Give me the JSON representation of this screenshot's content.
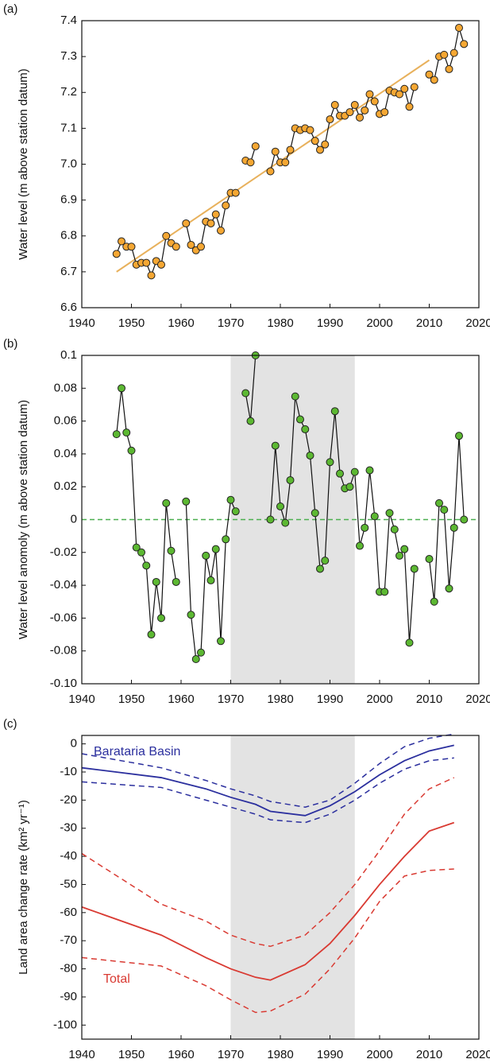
{
  "chart_data": [
    {
      "type": "line",
      "label": "(a)",
      "y_label": "Water level (m above station datum)",
      "xlim": [
        1940,
        2020
      ],
      "xticks": [
        1940,
        1950,
        1960,
        1970,
        1980,
        1990,
        2000,
        2010,
        2020
      ],
      "ylim": [
        6.6,
        7.4
      ],
      "yticks": [
        6.6,
        6.7,
        6.8,
        6.9,
        {
          "value": 7,
          "label": "7.0"
        },
        7.1,
        7.2,
        7.3,
        7.4
      ],
      "x": [
        1947,
        1948,
        1949,
        1950,
        1951,
        1952,
        1953,
        1954,
        1955,
        1956,
        1957,
        1958,
        1959,
        1960,
        1961,
        1962,
        1963,
        1964,
        1965,
        1966,
        1967,
        1968,
        1969,
        1970,
        1971,
        1972,
        1973,
        1974,
        1975,
        1976,
        1977,
        1978,
        1979,
        1980,
        1981,
        1982,
        1983,
        1984,
        1985,
        1986,
        1987,
        1988,
        1989,
        1990,
        1991,
        1992,
        1993,
        1994,
        1995,
        1996,
        1997,
        1998,
        1999,
        2000,
        2001,
        2002,
        2003,
        2004,
        2005,
        2006,
        2007,
        2008,
        2009,
        2010,
        2011,
        2012,
        2013,
        2014,
        2015,
        2016,
        2017
      ],
      "values": [
        6.75,
        6.785,
        6.77,
        6.77,
        6.72,
        6.725,
        6.725,
        6.69,
        6.73,
        6.72,
        6.8,
        6.78,
        6.77,
        null,
        6.835,
        6.775,
        6.76,
        6.77,
        6.84,
        6.835,
        6.86,
        6.815,
        6.885,
        6.92,
        6.92,
        null,
        7.01,
        7.005,
        7.05,
        null,
        null,
        6.98,
        7.035,
        7.005,
        7.005,
        7.04,
        7.1,
        7.095,
        7.1,
        7.095,
        7.065,
        7.04,
        7.055,
        7.125,
        7.165,
        7.135,
        7.135,
        7.145,
        7.165,
        7.13,
        7.15,
        7.195,
        7.175,
        7.14,
        7.145,
        7.205,
        7.2,
        7.195,
        7.21,
        7.16,
        7.215,
        null,
        null,
        7.25,
        7.235,
        7.3,
        7.305,
        7.265,
        7.31,
        7.38,
        7.335
      ],
      "point_color": "#f5a733",
      "line_color": "#111111",
      "trend": {
        "x": [
          1947,
          2010
        ],
        "values": [
          6.7,
          7.29
        ],
        "color": "#e8b15c"
      }
    },
    {
      "type": "line",
      "label": "(b)",
      "y_label": "Water level anomoly (m above station datum)",
      "xlim": [
        1940,
        2020
      ],
      "xticks": [
        1940,
        1950,
        1960,
        1970,
        1980,
        1990,
        2000,
        2010,
        2020
      ],
      "ylim": [
        -0.1,
        0.1
      ],
      "yticks": [
        {
          "value": -0.1,
          "label": "-0.10"
        },
        -0.08,
        -0.06,
        -0.04,
        -0.02,
        0,
        0.02,
        0.04,
        0.06,
        0.08,
        0.1
      ],
      "shade": [
        1970,
        1995
      ],
      "reference_line": 0,
      "reference_color": "#4caf50",
      "x": [
        1947,
        1948,
        1949,
        1950,
        1951,
        1952,
        1953,
        1954,
        1955,
        1956,
        1957,
        1958,
        1959,
        1960,
        1961,
        1962,
        1963,
        1964,
        1965,
        1966,
        1967,
        1968,
        1969,
        1970,
        1971,
        1972,
        1973,
        1974,
        1975,
        1976,
        1977,
        1978,
        1979,
        1980,
        1981,
        1982,
        1983,
        1984,
        1985,
        1986,
        1987,
        1988,
        1989,
        1990,
        1991,
        1992,
        1993,
        1994,
        1995,
        1996,
        1997,
        1998,
        1999,
        2000,
        2001,
        2002,
        2003,
        2004,
        2005,
        2006,
        2007,
        2008,
        2009,
        2010,
        2011,
        2012,
        2013,
        2014,
        2015,
        2016,
        2017
      ],
      "values": [
        0.052,
        0.08,
        0.053,
        0.042,
        -0.017,
        -0.02,
        -0.028,
        -0.07,
        -0.038,
        -0.06,
        0.01,
        -0.019,
        -0.038,
        null,
        0.011,
        -0.058,
        -0.085,
        -0.081,
        -0.022,
        -0.037,
        -0.018,
        -0.074,
        -0.012,
        0.012,
        0.005,
        null,
        0.077,
        0.06,
        0.1,
        null,
        null,
        0,
        0.045,
        0.008,
        -0.002,
        0.024,
        0.075,
        0.061,
        0.055,
        0.039,
        0.004,
        -0.03,
        -0.025,
        0.035,
        0.066,
        0.028,
        0.019,
        0.02,
        0.029,
        -0.016,
        -0.005,
        0.03,
        0.002,
        -0.044,
        -0.044,
        0.004,
        -0.006,
        -0.022,
        -0.018,
        -0.075,
        -0.03,
        null,
        null,
        -0.024,
        -0.05,
        0.01,
        0.006,
        -0.042,
        -0.005,
        0.051,
        0
      ],
      "point_color": "#5cb832",
      "line_color": "#111111"
    },
    {
      "type": "band_line",
      "label": "(c)",
      "y_label": "Land area change rate (km² yr⁻¹)",
      "xlim": [
        1940,
        2020
      ],
      "xticks": [
        1940,
        1950,
        1960,
        1970,
        1980,
        1990,
        2000,
        2010,
        2020
      ],
      "ylim": [
        -105,
        3
      ],
      "yticks": [
        -100,
        -90,
        -80,
        -70,
        -60,
        -50,
        -40,
        -30,
        -20,
        -10,
        0
      ],
      "shade": [
        1970,
        1995
      ],
      "x": [
        1940,
        1956,
        1965,
        1970,
        1975,
        1978,
        1985,
        1990,
        1995,
        2000,
        2005,
        2010,
        2015
      ],
      "series": [
        {
          "name": "Barataria Basin",
          "color": "#2b2f9e",
          "values": [
            -8.5,
            -12,
            -16,
            -19,
            -21.5,
            -24,
            -25.5,
            -22,
            -17,
            -11,
            -6,
            -2.5,
            -0.5
          ],
          "upper": [
            -3.5,
            -8.5,
            -13,
            -16,
            -18.5,
            -20.5,
            -22.5,
            -20,
            -14,
            -7,
            -1,
            2,
            3.5
          ],
          "lower": [
            -13.5,
            -15.5,
            -20,
            -22.5,
            -25,
            -27,
            -28,
            -25,
            -20,
            -14,
            -9,
            -6,
            -5
          ]
        },
        {
          "name": "Total",
          "color": "#d93a32",
          "values": [
            -58,
            -68,
            -76,
            -80,
            -83,
            -84,
            -78.5,
            -71,
            -61,
            -50,
            -40,
            -31,
            -28
          ],
          "upper": [
            -39,
            -57,
            -63,
            -68,
            -71,
            -72,
            -68,
            -60,
            -50,
            -38,
            -25,
            -16,
            -12
          ],
          "lower": [
            -76,
            -79,
            -86,
            -91,
            -95.5,
            -95,
            -89,
            -80,
            -69,
            -56,
            -47,
            -45,
            -44.5
          ]
        }
      ]
    }
  ]
}
